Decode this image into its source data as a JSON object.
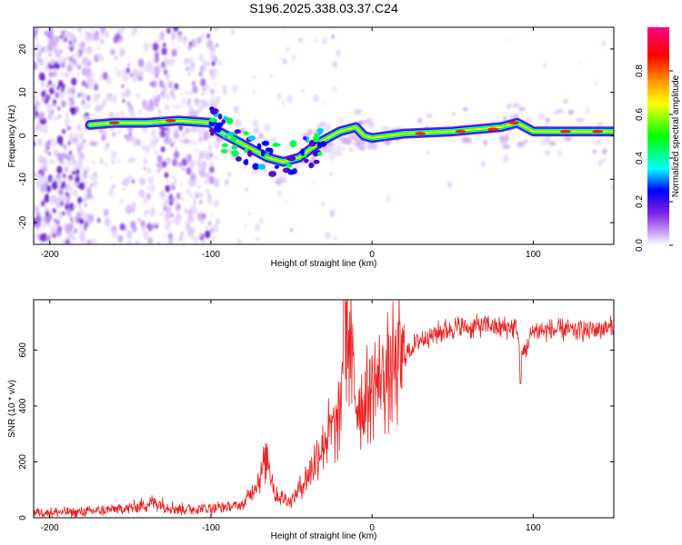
{
  "title": "S196.2025.338.03.37.C24",
  "colors": {
    "snr_line": "#ee2222",
    "axis": "#000000"
  },
  "chart_data": [
    {
      "type": "heatmap",
      "name": "spectrogram",
      "xlabel": "Height of straight line (km)",
      "ylabel": "Frequency (Hz)",
      "xlim": [
        -210,
        150
      ],
      "ylim": [
        -25,
        25
      ],
      "xticks": [
        -200,
        -100,
        0,
        100
      ],
      "yticks": [
        -20,
        -10,
        0,
        10,
        20
      ],
      "ridge": [
        {
          "x": -175,
          "y": 2.5
        },
        {
          "x": -160,
          "y": 3
        },
        {
          "x": -140,
          "y": 3
        },
        {
          "x": -120,
          "y": 3.5
        },
        {
          "x": -100,
          "y": 3
        },
        {
          "x": -95,
          "y": 1
        },
        {
          "x": -85,
          "y": -1
        },
        {
          "x": -75,
          "y": -3
        },
        {
          "x": -65,
          "y": -5
        },
        {
          "x": -55,
          "y": -6
        },
        {
          "x": -45,
          "y": -5
        },
        {
          "x": -38,
          "y": -3
        },
        {
          "x": -30,
          "y": -1
        },
        {
          "x": -20,
          "y": 1
        },
        {
          "x": -10,
          "y": 2
        },
        {
          "x": -5,
          "y": 0
        },
        {
          "x": 0,
          "y": -0.5
        },
        {
          "x": 20,
          "y": 0.5
        },
        {
          "x": 50,
          "y": 1
        },
        {
          "x": 80,
          "y": 2
        },
        {
          "x": 90,
          "y": 3
        },
        {
          "x": 100,
          "y": 1
        },
        {
          "x": 120,
          "y": 1
        },
        {
          "x": 150,
          "y": 1
        }
      ],
      "colorbar": {
        "label": "Normalized spectral amplitude",
        "range": [
          0,
          1
        ],
        "ticks": [
          0.0,
          0.2,
          0.4,
          0.6,
          0.8
        ],
        "tick_labels": [
          "0.0",
          "0.2",
          "0.4",
          "0.6",
          "0.8"
        ],
        "colormap": [
          "#ffffff",
          "#b070f0",
          "#5500cc",
          "#0000ff",
          "#00ffff",
          "#00ff00",
          "#ffff00",
          "#ff8800",
          "#ff0000",
          "#ff0088"
        ]
      }
    },
    {
      "type": "line",
      "name": "snr",
      "xlabel": "Height of straight line (km)",
      "ylabel": "SNR (10 * v/v)",
      "xlim": [
        -210,
        150
      ],
      "ylim": [
        0,
        780
      ],
      "xticks": [
        -200,
        -100,
        0,
        100
      ],
      "yticks": [
        0,
        200,
        400,
        600
      ],
      "series": [
        {
          "name": "SNR",
          "x": [
            -210,
            -180,
            -150,
            -135,
            -120,
            -100,
            -90,
            -80,
            -70,
            -65,
            -60,
            -50,
            -40,
            -35,
            -30,
            -20,
            -17,
            -10,
            -5,
            0,
            10,
            20,
            30,
            40,
            50,
            60,
            70,
            80,
            90,
            92,
            100,
            110,
            120,
            130,
            150
          ],
          "y": [
            20,
            20,
            35,
            55,
            30,
            35,
            40,
            45,
            140,
            230,
            80,
            60,
            150,
            210,
            280,
            350,
            770,
            420,
            400,
            480,
            520,
            580,
            640,
            660,
            680,
            680,
            690,
            680,
            680,
            560,
            670,
            670,
            670,
            670,
            680
          ]
        }
      ]
    }
  ]
}
